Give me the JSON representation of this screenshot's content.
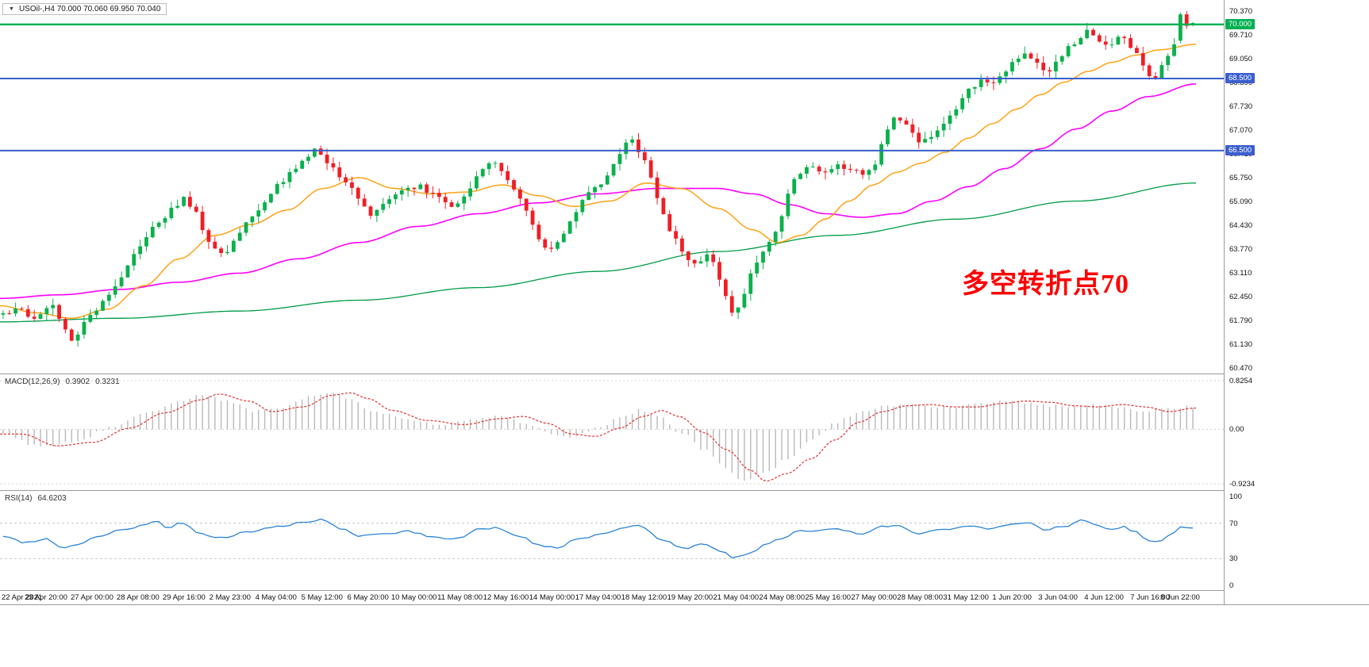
{
  "symbol_header": {
    "collapse_icon": "▼",
    "text": "USOil-,H4  70.000 70.060 69.950 70.040"
  },
  "macd_header": {
    "title": "MACD(12,26,9)",
    "value1": "0.3902",
    "value2": "0.3231"
  },
  "rsi_header": {
    "title": "RSI(14)",
    "value1": "64.6203"
  },
  "annotation": {
    "text": "多空转折点70",
    "color": "#ff0000"
  },
  "colors": {
    "up_candle": "#0bb04c",
    "down_candle": "#ef1f25",
    "ma_fast": "#ffa216",
    "ma_mid": "#ff00ff",
    "ma_slow": "#009b48",
    "macd_bar": "#b9b9b9",
    "macd_signal": "#e03030",
    "rsi_line": "#2b83d6",
    "hline_green": "#00b050",
    "hline_blue": "#3a5fcd",
    "separator": "#9a9a9a",
    "scale_text": "#111111"
  },
  "main_panel": {
    "scale_labels": [
      "70.370",
      "69.710",
      "69.050",
      "68.390",
      "67.730",
      "67.070",
      "66.410",
      "65.750",
      "65.090",
      "64.430",
      "63.770",
      "63.110",
      "62.450",
      "61.790",
      "61.130",
      "60.470"
    ]
  },
  "chart_data": {
    "type": "candlestick",
    "symbol": "USOil-",
    "timeframe": "H4",
    "current_ohlc": {
      "open": 70.0,
      "high": 70.06,
      "low": 69.95,
      "close": 70.04
    },
    "y_range": [
      60.47,
      70.37
    ],
    "candle_count": 192,
    "noise_seed": 20,
    "x_labels": [
      "22 Apr 2021",
      "23 Apr 20:00",
      "27 Apr 00:00",
      "28 Apr 08:00",
      "29 Apr 16:00",
      "2 May 23:00",
      "4 May 04:00",
      "5 May 12:00",
      "6 May 20:00",
      "10 May 00:00",
      "11 May 08:00",
      "12 May 16:00",
      "14 May 00:00",
      "17 May 04:00",
      "18 May 12:00",
      "19 May 20:00",
      "21 May 04:00",
      "24 May 08:00",
      "25 May 16:00",
      "27 May 00:00",
      "28 May 08:00",
      "31 May 12:00",
      "1 Jun 20:00",
      "3 Jun 04:00",
      "4 Jun 12:00",
      "7 Jun 16:00",
      "8 Jun 22:00"
    ],
    "hlines": [
      {
        "price": 70.0,
        "label": "70.000",
        "color": "#00b050",
        "width": 2.4
      },
      {
        "price": 68.5,
        "label": "68.500",
        "color": "#3a5fcd",
        "width": 2
      },
      {
        "price": 66.5,
        "label": "66.500",
        "color": "#3a5fcd",
        "width": 2
      }
    ],
    "price_path": [
      [
        0,
        61.95
      ],
      [
        0.012,
        62.1
      ],
      [
        0.025,
        61.85
      ],
      [
        0.04,
        62.25
      ],
      [
        0.052,
        61.6
      ],
      [
        0.06,
        61.15
      ],
      [
        0.068,
        61.7
      ],
      [
        0.08,
        62.2
      ],
      [
        0.095,
        62.7
      ],
      [
        0.11,
        63.6
      ],
      [
        0.125,
        64.3
      ],
      [
        0.14,
        64.8
      ],
      [
        0.152,
        65.15
      ],
      [
        0.163,
        64.7
      ],
      [
        0.172,
        64.0
      ],
      [
        0.185,
        63.6
      ],
      [
        0.2,
        64.3
      ],
      [
        0.215,
        64.9
      ],
      [
        0.23,
        65.5
      ],
      [
        0.248,
        66.05
      ],
      [
        0.262,
        66.5
      ],
      [
        0.272,
        66.2
      ],
      [
        0.283,
        65.8
      ],
      [
        0.295,
        65.35
      ],
      [
        0.308,
        64.65
      ],
      [
        0.32,
        65.0
      ],
      [
        0.335,
        65.35
      ],
      [
        0.35,
        65.5
      ],
      [
        0.365,
        65.2
      ],
      [
        0.378,
        64.9
      ],
      [
        0.39,
        65.4
      ],
      [
        0.402,
        65.9
      ],
      [
        0.412,
        66.25
      ],
      [
        0.425,
        65.7
      ],
      [
        0.438,
        64.9
      ],
      [
        0.452,
        63.85
      ],
      [
        0.462,
        63.7
      ],
      [
        0.475,
        64.4
      ],
      [
        0.49,
        65.3
      ],
      [
        0.505,
        65.7
      ],
      [
        0.518,
        66.4
      ],
      [
        0.528,
        66.85
      ],
      [
        0.538,
        66.3
      ],
      [
        0.548,
        65.4
      ],
      [
        0.56,
        64.3
      ],
      [
        0.572,
        63.6
      ],
      [
        0.582,
        63.35
      ],
      [
        0.592,
        63.7
      ],
      [
        0.602,
        63.0
      ],
      [
        0.612,
        62.0
      ],
      [
        0.62,
        62.3
      ],
      [
        0.63,
        63.3
      ],
      [
        0.642,
        63.85
      ],
      [
        0.652,
        64.4
      ],
      [
        0.662,
        65.6
      ],
      [
        0.672,
        65.95
      ],
      [
        0.682,
        66.05
      ],
      [
        0.692,
        65.8
      ],
      [
        0.702,
        66.1
      ],
      [
        0.712,
        66.0
      ],
      [
        0.722,
        65.8
      ],
      [
        0.732,
        66.05
      ],
      [
        0.74,
        66.9
      ],
      [
        0.75,
        67.45
      ],
      [
        0.76,
        67.25
      ],
      [
        0.772,
        66.7
      ],
      [
        0.782,
        66.9
      ],
      [
        0.792,
        67.3
      ],
      [
        0.802,
        67.7
      ],
      [
        0.812,
        68.2
      ],
      [
        0.822,
        68.5
      ],
      [
        0.832,
        68.3
      ],
      [
        0.842,
        68.65
      ],
      [
        0.852,
        69.05
      ],
      [
        0.86,
        69.3
      ],
      [
        0.868,
        68.95
      ],
      [
        0.876,
        68.6
      ],
      [
        0.884,
        68.95
      ],
      [
        0.892,
        69.25
      ],
      [
        0.902,
        69.55
      ],
      [
        0.91,
        69.85
      ],
      [
        0.92,
        69.6
      ],
      [
        0.93,
        69.4
      ],
      [
        0.94,
        69.7
      ],
      [
        0.95,
        69.3
      ],
      [
        0.96,
        68.7
      ],
      [
        0.968,
        68.55
      ],
      [
        0.978,
        69.1
      ],
      [
        0.988,
        69.75
      ],
      [
        1,
        70.04
      ]
    ],
    "final_candles": [
      {
        "o": 69.55,
        "h": 70.33,
        "l": 69.48,
        "c": 70.28
      },
      {
        "o": 70.28,
        "h": 70.37,
        "l": 69.88,
        "c": 69.96
      },
      {
        "o": 70.0,
        "h": 70.06,
        "l": 69.95,
        "c": 70.04
      }
    ],
    "ma_fast_path": [
      [
        0,
        62.2
      ],
      [
        0.03,
        62.0
      ],
      [
        0.06,
        61.85
      ],
      [
        0.09,
        62.1
      ],
      [
        0.12,
        62.75
      ],
      [
        0.15,
        63.5
      ],
      [
        0.18,
        64.15
      ],
      [
        0.21,
        64.45
      ],
      [
        0.24,
        64.85
      ],
      [
        0.27,
        65.45
      ],
      [
        0.3,
        65.75
      ],
      [
        0.33,
        65.45
      ],
      [
        0.36,
        65.3
      ],
      [
        0.39,
        65.35
      ],
      [
        0.42,
        65.55
      ],
      [
        0.45,
        65.25
      ],
      [
        0.48,
        64.95
      ],
      [
        0.51,
        65.1
      ],
      [
        0.54,
        65.6
      ],
      [
        0.57,
        65.45
      ],
      [
        0.6,
        64.9
      ],
      [
        0.63,
        64.3
      ],
      [
        0.65,
        63.95
      ],
      [
        0.67,
        64.15
      ],
      [
        0.69,
        64.6
      ],
      [
        0.71,
        65.1
      ],
      [
        0.73,
        65.55
      ],
      [
        0.75,
        65.9
      ],
      [
        0.77,
        66.15
      ],
      [
        0.79,
        66.45
      ],
      [
        0.81,
        66.85
      ],
      [
        0.83,
        67.25
      ],
      [
        0.85,
        67.65
      ],
      [
        0.87,
        68.05
      ],
      [
        0.89,
        68.4
      ],
      [
        0.91,
        68.7
      ],
      [
        0.93,
        68.95
      ],
      [
        0.95,
        69.15
      ],
      [
        0.97,
        69.3
      ],
      [
        1,
        69.45
      ]
    ],
    "ma_mid_path": [
      [
        0,
        62.4
      ],
      [
        0.05,
        62.5
      ],
      [
        0.1,
        62.65
      ],
      [
        0.15,
        62.85
      ],
      [
        0.2,
        63.1
      ],
      [
        0.25,
        63.5
      ],
      [
        0.3,
        63.95
      ],
      [
        0.35,
        64.4
      ],
      [
        0.4,
        64.75
      ],
      [
        0.45,
        65.05
      ],
      [
        0.5,
        65.3
      ],
      [
        0.55,
        65.45
      ],
      [
        0.6,
        65.45
      ],
      [
        0.63,
        65.3
      ],
      [
        0.66,
        65.0
      ],
      [
        0.69,
        64.75
      ],
      [
        0.72,
        64.65
      ],
      [
        0.75,
        64.75
      ],
      [
        0.78,
        65.1
      ],
      [
        0.81,
        65.5
      ],
      [
        0.84,
        66.0
      ],
      [
        0.87,
        66.55
      ],
      [
        0.9,
        67.1
      ],
      [
        0.93,
        67.6
      ],
      [
        0.96,
        68.0
      ],
      [
        1,
        68.35
      ]
    ],
    "ma_slow_path": [
      [
        0,
        61.75
      ],
      [
        0.1,
        61.85
      ],
      [
        0.2,
        62.05
      ],
      [
        0.3,
        62.35
      ],
      [
        0.4,
        62.7
      ],
      [
        0.5,
        63.15
      ],
      [
        0.6,
        63.7
      ],
      [
        0.7,
        64.15
      ],
      [
        0.8,
        64.6
      ],
      [
        0.9,
        65.1
      ],
      [
        1,
        65.6
      ]
    ],
    "macd": {
      "params": "12,26,9",
      "main_value": 0.3902,
      "signal_value": 0.3231,
      "range": [
        -0.9234,
        0.8254
      ],
      "scale_labels": [
        "0.8254",
        "0.00",
        "-0.9234"
      ],
      "scale_values": [
        0.8254,
        0,
        -0.9234
      ],
      "line_path": [
        [
          0,
          -0.08
        ],
        [
          0.03,
          -0.28
        ],
        [
          0.06,
          -0.22
        ],
        [
          0.09,
          0.02
        ],
        [
          0.12,
          0.28
        ],
        [
          0.15,
          0.5
        ],
        [
          0.165,
          0.6
        ],
        [
          0.19,
          0.48
        ],
        [
          0.21,
          0.3
        ],
        [
          0.235,
          0.38
        ],
        [
          0.26,
          0.58
        ],
        [
          0.275,
          0.62
        ],
        [
          0.29,
          0.52
        ],
        [
          0.31,
          0.32
        ],
        [
          0.34,
          0.15
        ],
        [
          0.37,
          0.08
        ],
        [
          0.4,
          0.18
        ],
        [
          0.42,
          0.22
        ],
        [
          0.44,
          0.1
        ],
        [
          0.46,
          -0.08
        ],
        [
          0.48,
          -0.12
        ],
        [
          0.5,
          0.02
        ],
        [
          0.52,
          0.22
        ],
        [
          0.535,
          0.32
        ],
        [
          0.55,
          0.22
        ],
        [
          0.57,
          -0.05
        ],
        [
          0.59,
          -0.35
        ],
        [
          0.61,
          -0.7
        ],
        [
          0.622,
          -0.88
        ],
        [
          0.64,
          -0.75
        ],
        [
          0.66,
          -0.5
        ],
        [
          0.68,
          -0.18
        ],
        [
          0.7,
          0.12
        ],
        [
          0.72,
          0.3
        ],
        [
          0.74,
          0.4
        ],
        [
          0.76,
          0.42
        ],
        [
          0.78,
          0.38
        ],
        [
          0.8,
          0.38
        ],
        [
          0.82,
          0.44
        ],
        [
          0.84,
          0.48
        ],
        [
          0.86,
          0.46
        ],
        [
          0.88,
          0.4
        ],
        [
          0.9,
          0.38
        ],
        [
          0.92,
          0.42
        ],
        [
          0.94,
          0.38
        ],
        [
          0.96,
          0.3
        ],
        [
          0.98,
          0.36
        ],
        [
          1,
          0.39
        ]
      ]
    },
    "rsi": {
      "params": "14",
      "value": 64.6203,
      "scale_labels": [
        "100",
        "70",
        "30",
        "0"
      ],
      "scale_values": [
        100,
        70,
        30,
        0
      ],
      "dashed_levels": [
        70,
        30
      ],
      "line_path": [
        [
          0,
          55
        ],
        [
          0.02,
          48
        ],
        [
          0.035,
          52
        ],
        [
          0.05,
          43
        ],
        [
          0.062,
          46
        ],
        [
          0.08,
          55
        ],
        [
          0.1,
          62
        ],
        [
          0.118,
          68
        ],
        [
          0.128,
          73
        ],
        [
          0.14,
          64
        ],
        [
          0.15,
          71
        ],
        [
          0.165,
          58
        ],
        [
          0.185,
          53
        ],
        [
          0.205,
          60
        ],
        [
          0.23,
          66
        ],
        [
          0.255,
          72
        ],
        [
          0.268,
          74
        ],
        [
          0.285,
          64
        ],
        [
          0.3,
          55
        ],
        [
          0.32,
          58
        ],
        [
          0.34,
          61
        ],
        [
          0.36,
          55
        ],
        [
          0.38,
          52
        ],
        [
          0.4,
          63
        ],
        [
          0.415,
          65
        ],
        [
          0.435,
          55
        ],
        [
          0.45,
          45
        ],
        [
          0.465,
          42
        ],
        [
          0.485,
          53
        ],
        [
          0.505,
          58
        ],
        [
          0.522,
          65
        ],
        [
          0.535,
          67
        ],
        [
          0.555,
          50
        ],
        [
          0.572,
          42
        ],
        [
          0.59,
          46
        ],
        [
          0.603,
          38
        ],
        [
          0.615,
          31
        ],
        [
          0.628,
          36
        ],
        [
          0.64,
          46
        ],
        [
          0.655,
          53
        ],
        [
          0.668,
          61
        ],
        [
          0.685,
          62
        ],
        [
          0.7,
          64
        ],
        [
          0.72,
          58
        ],
        [
          0.74,
          66
        ],
        [
          0.752,
          68
        ],
        [
          0.77,
          58
        ],
        [
          0.79,
          63
        ],
        [
          0.81,
          67
        ],
        [
          0.83,
          64
        ],
        [
          0.85,
          68
        ],
        [
          0.862,
          71
        ],
        [
          0.875,
          62
        ],
        [
          0.89,
          66
        ],
        [
          0.908,
          73
        ],
        [
          0.922,
          66
        ],
        [
          0.932,
          62
        ],
        [
          0.942,
          66
        ],
        [
          0.952,
          60
        ],
        [
          0.962,
          50
        ],
        [
          0.97,
          49
        ],
        [
          0.982,
          58
        ],
        [
          0.992,
          66
        ],
        [
          1,
          64.62
        ]
      ]
    }
  }
}
